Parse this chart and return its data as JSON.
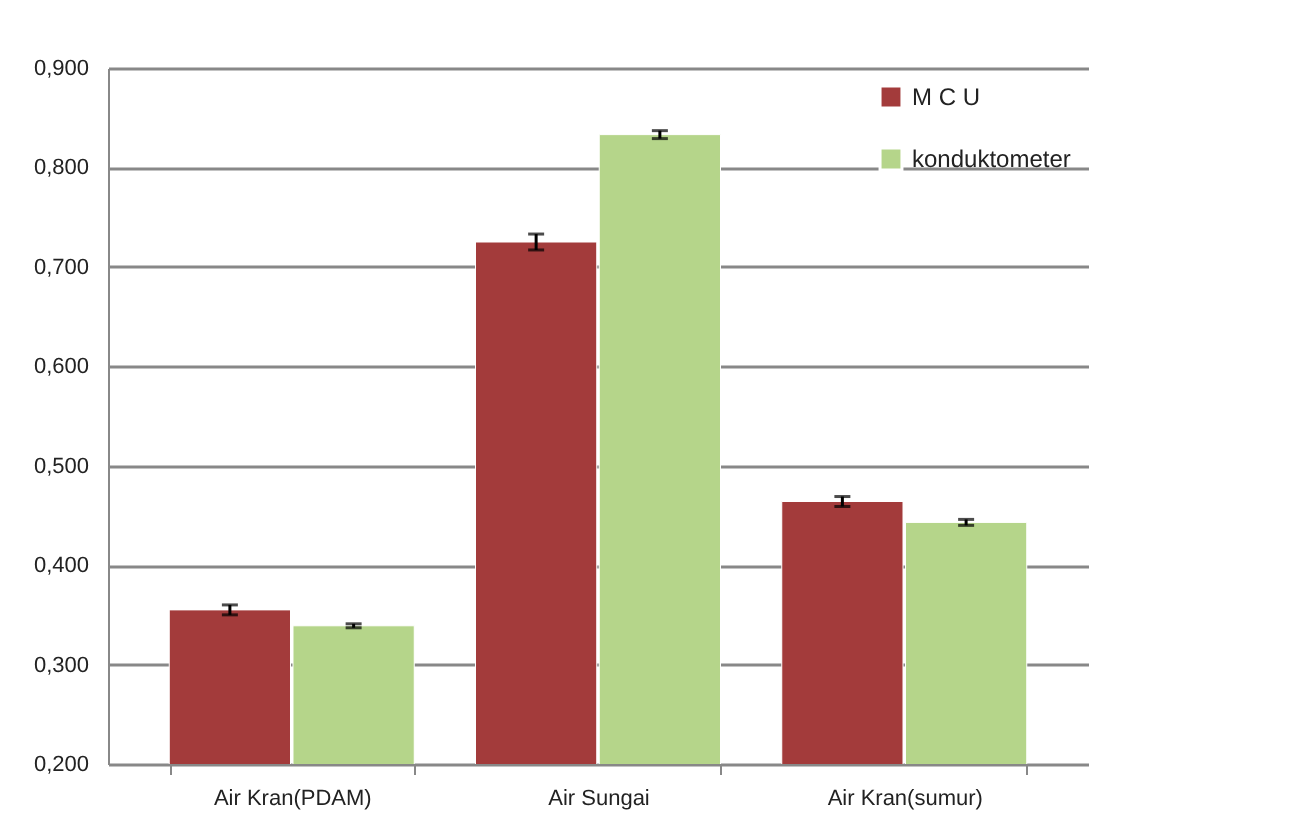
{
  "chart_data": {
    "type": "bar",
    "categories": [
      "Air Kran(PDAM)",
      "Air Sungai",
      "Air Kran(sumur)"
    ],
    "series": [
      {
        "name": "M C U",
        "color": "#a33b3b",
        "values": [
          0.355,
          0.725,
          0.464
        ],
        "errors": [
          0.005,
          0.008,
          0.005
        ]
      },
      {
        "name": "konduktometer",
        "color": "#b5d58a",
        "values": [
          0.339,
          0.833,
          0.443
        ],
        "errors": [
          0.002,
          0.004,
          0.003
        ]
      }
    ],
    "ylim": [
      0.2,
      0.9
    ],
    "yticks": [
      {
        "value": 0.2,
        "label": "0,200"
      },
      {
        "value": 0.3,
        "label": "0,300"
      },
      {
        "value": 0.4,
        "label": "0,400"
      },
      {
        "value": 0.5,
        "label": "0,500"
      },
      {
        "value": 0.6,
        "label": "0,600"
      },
      {
        "value": 0.7,
        "label": "0,700"
      },
      {
        "value": 0.8,
        "label": "0,800"
      },
      {
        "value": 0.9,
        "label": "0,900"
      }
    ],
    "grid": "y",
    "legend": "top right"
  }
}
